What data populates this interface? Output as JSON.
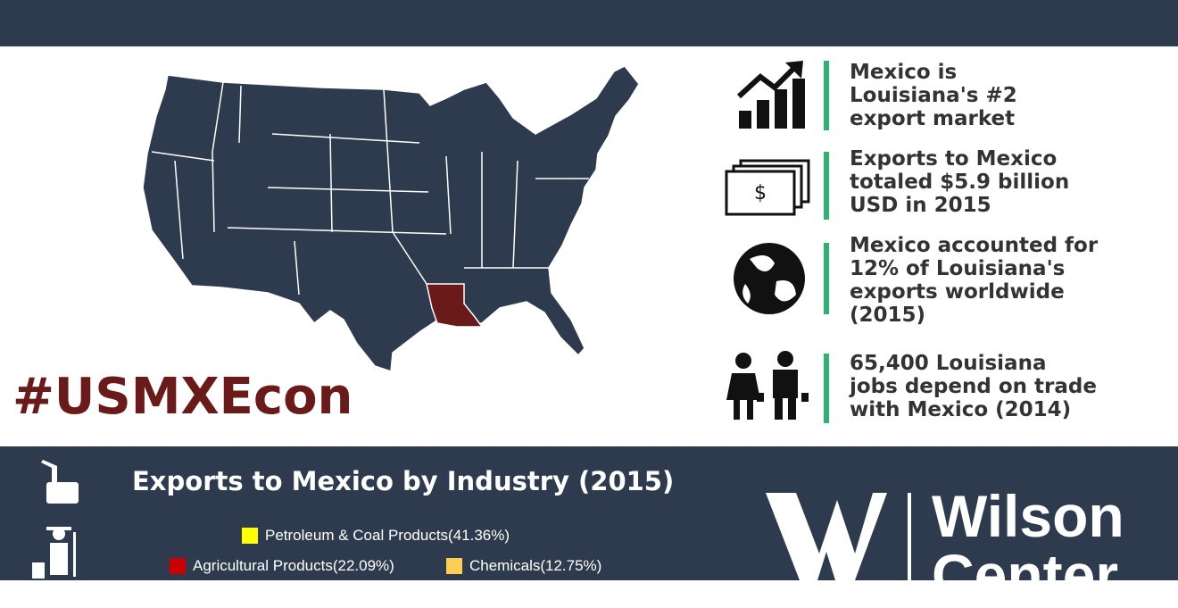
{
  "hashtag": "#USMXEcon",
  "facts": [
    {
      "lines": [
        "Mexico is",
        "Louisiana's #2",
        "export market"
      ]
    },
    {
      "lines": [
        "Exports to Mexico",
        "totaled $5.9 billion",
        "USD in 2015"
      ]
    },
    {
      "lines": [
        "Mexico accounted for",
        "12% of Louisiana's",
        "exports worldwide",
        "(2015)"
      ]
    },
    {
      "lines": [
        "65,400 Louisiana",
        "jobs depend on trade",
        "with Mexico (2014)"
      ]
    }
  ],
  "industry_chart": {
    "title": "Exports to Mexico by Industry (2015)",
    "legend": [
      {
        "label": "Petroleum & Coal Products(41.36%)",
        "color": "#ffff00"
      },
      {
        "label": "Agricultural Products(22.09%)",
        "color": "#cc0000"
      },
      {
        "label": "Chemicals(12.75%)",
        "color": "#ffcc55"
      }
    ]
  },
  "logo": {
    "lines": [
      "Wilson",
      "Center"
    ]
  }
}
